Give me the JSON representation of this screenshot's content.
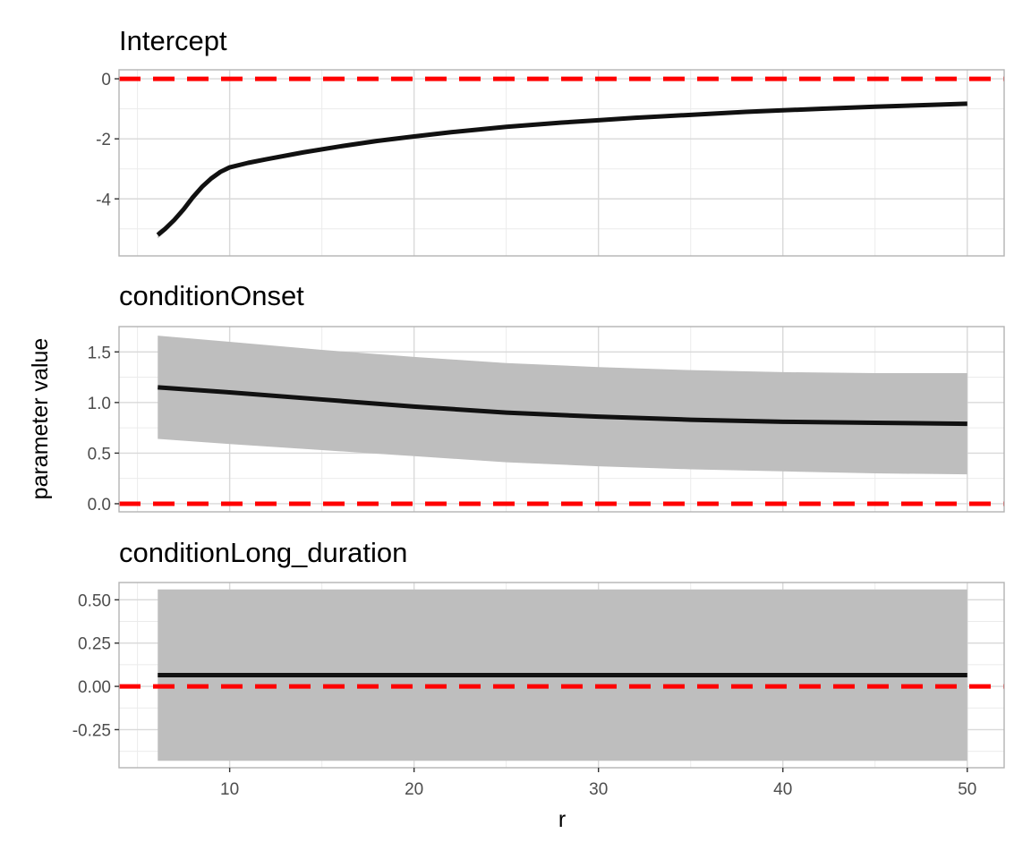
{
  "chart_data": {
    "type": "line",
    "xlabel": "r",
    "ylabel": "parameter value",
    "xlim": [
      4,
      52
    ],
    "x_ticks": [
      10,
      20,
      30,
      40,
      50
    ],
    "x_tick_labels": [
      "10",
      "20",
      "30",
      "40",
      "50"
    ],
    "reference_line": {
      "y": 0,
      "color": "#ff0000",
      "style": "dashed"
    },
    "line_color": "#111111",
    "ribbon_color": "#bebebe",
    "grid": true,
    "panels": [
      {
        "title": "Intercept",
        "ylim": [
          -5.9,
          0.3
        ],
        "y_ticks": [
          0,
          -2,
          -4
        ],
        "y_tick_labels": [
          "0",
          "-2",
          "-4"
        ],
        "series": {
          "x": [
            6.1,
            6.5,
            7,
            7.5,
            8,
            8.5,
            9,
            9.5,
            10,
            11,
            12,
            14,
            16,
            18,
            20,
            22,
            25,
            28,
            30,
            32,
            35,
            38,
            40,
            42,
            45,
            48,
            50
          ],
          "y": [
            -5.2,
            -5.0,
            -4.7,
            -4.35,
            -3.95,
            -3.6,
            -3.32,
            -3.1,
            -2.95,
            -2.8,
            -2.68,
            -2.45,
            -2.25,
            -2.07,
            -1.92,
            -1.78,
            -1.6,
            -1.46,
            -1.38,
            -1.3,
            -1.2,
            -1.1,
            -1.05,
            -1.0,
            -0.93,
            -0.87,
            -0.83
          ],
          "lower": [
            -5.32,
            -5.1,
            -4.78,
            -4.42,
            -4.02,
            -3.66,
            -3.37,
            -3.14,
            -2.98,
            -2.82,
            -2.69,
            -2.46,
            -2.26,
            -2.08,
            -1.93,
            -1.79,
            -1.61,
            -1.47,
            -1.39,
            -1.31,
            -1.21,
            -1.11,
            -1.06,
            -1.01,
            -0.94,
            -0.88,
            -0.84
          ],
          "upper": [
            -5.08,
            -4.9,
            -4.62,
            -4.28,
            -3.88,
            -3.54,
            -3.27,
            -3.06,
            -2.92,
            -2.78,
            -2.67,
            -2.44,
            -2.24,
            -2.06,
            -1.91,
            -1.77,
            -1.59,
            -1.45,
            -1.37,
            -1.29,
            -1.19,
            -1.09,
            -1.04,
            -0.99,
            -0.92,
            -0.86,
            -0.82
          ]
        }
      },
      {
        "title": "conditionOnset",
        "ylim": [
          -0.08,
          1.75
        ],
        "y_ticks": [
          0,
          0.5,
          1,
          1.5
        ],
        "y_tick_labels": [
          "0.0",
          "0.5",
          "1.0",
          "1.5"
        ],
        "series": {
          "x": [
            6.1,
            10,
            15,
            20,
            25,
            30,
            35,
            40,
            45,
            50
          ],
          "y": [
            1.15,
            1.1,
            1.03,
            0.96,
            0.9,
            0.86,
            0.83,
            0.81,
            0.8,
            0.79
          ],
          "lower": [
            0.64,
            0.59,
            0.53,
            0.47,
            0.41,
            0.37,
            0.34,
            0.32,
            0.3,
            0.29
          ],
          "upper": [
            1.66,
            1.6,
            1.52,
            1.45,
            1.39,
            1.35,
            1.32,
            1.3,
            1.29,
            1.29
          ]
        }
      },
      {
        "title": "conditionLong_duration",
        "ylim": [
          -0.47,
          0.6
        ],
        "y_ticks": [
          0.5,
          0.25,
          0,
          -0.25
        ],
        "y_tick_labels": [
          "0.50",
          "0.25",
          "0.00",
          "-0.25"
        ],
        "series": {
          "x": [
            6.1,
            50
          ],
          "y": [
            0.065,
            0.065
          ],
          "lower": [
            -0.43,
            -0.43
          ],
          "upper": [
            0.56,
            0.56
          ]
        }
      }
    ]
  }
}
